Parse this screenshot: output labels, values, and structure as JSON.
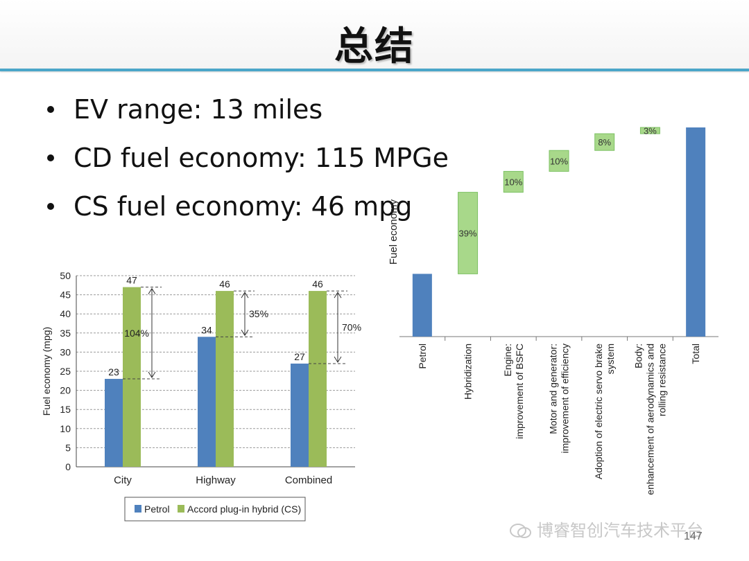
{
  "slide": {
    "title": "总结",
    "bullets": [
      "EV range: 13 miles",
      "CD fuel economy: 115 MPGe",
      "CS fuel economy: 46 mpg"
    ],
    "watermark": "博睿智创汽车技术平台",
    "page_number": "147",
    "accent_color": "#4aa6c9"
  },
  "chart_data": [
    {
      "type": "bar",
      "categories": [
        "City",
        "Highway",
        "Combined"
      ],
      "series": [
        {
          "name": "Petrol",
          "values": [
            23,
            34,
            27
          ],
          "color": "#4f81bd"
        },
        {
          "name": "Accord plug-in hybrid (CS)",
          "values": [
            47,
            46,
            46
          ],
          "color": "#9bbb59"
        }
      ],
      "annotations": [
        "104%",
        "35%",
        "70%"
      ],
      "ylabel": "Fuel economy (mpg)",
      "xlabel": "",
      "ylim": [
        0,
        50
      ],
      "yticks": [
        0,
        5,
        10,
        15,
        20,
        25,
        30,
        35,
        40,
        45,
        50
      ],
      "grid": true,
      "legend": "bottom"
    },
    {
      "type": "bar",
      "subtype": "waterfall",
      "ylabel": "Fuel economy",
      "categories": [
        "Petrol",
        "Hybridization",
        "Engine:\nimprovement of BSFC",
        "Motor and generator:\nimprovement of efficiency",
        "Adoption of electric servo brake\nsystem",
        "Body:\nenhancement of aerodynamics and\nrolling resistance",
        "Total"
      ],
      "steps": [
        {
          "label": "",
          "value": 30,
          "kind": "total"
        },
        {
          "label": "39%",
          "value": 39,
          "kind": "increase"
        },
        {
          "label": "10%",
          "value": 10,
          "kind": "increase"
        },
        {
          "label": "10%",
          "value": 10,
          "kind": "increase"
        },
        {
          "label": "8%",
          "value": 8,
          "kind": "increase"
        },
        {
          "label": "3%",
          "value": 3,
          "kind": "increase"
        },
        {
          "label": "",
          "value": 100,
          "kind": "total"
        }
      ],
      "ylim": [
        0,
        100
      ],
      "colors": {
        "total": "#4f81bd",
        "increase": "#a8d88a"
      }
    }
  ]
}
